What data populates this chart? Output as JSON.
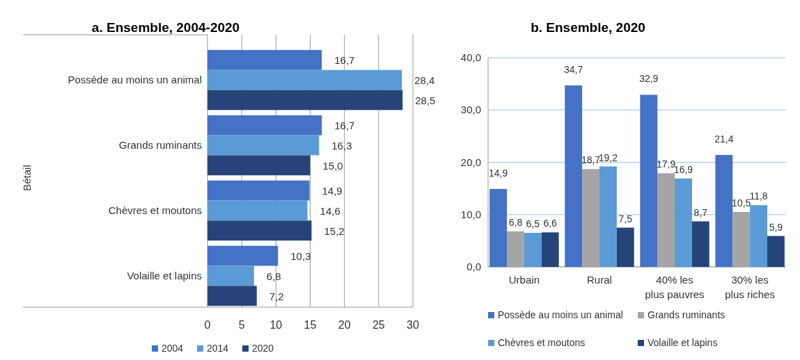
{
  "chart_data": [
    {
      "type": "bar",
      "title": "a. Ensemble, 2004-2020",
      "orientation": "horizontal",
      "ylabel": "Bétail",
      "categories": [
        "Possède au moins un animal",
        "Grands ruminants",
        "Chèvres et moutons",
        "Volaille et lapins"
      ],
      "series": [
        {
          "name": "2004",
          "color": "#4472c4",
          "values": [
            16.7,
            16.7,
            14.9,
            10.3
          ],
          "value_labels": [
            "16,7",
            "16,7",
            "14,9",
            "10,3"
          ]
        },
        {
          "name": "2014",
          "color": "#5b9bd5",
          "values": [
            28.4,
            16.3,
            14.6,
            6.8
          ],
          "value_labels": [
            "28,4",
            "16,3",
            "14,6",
            "6,8"
          ]
        },
        {
          "name": "2020",
          "color": "#264478",
          "values": [
            28.5,
            15.0,
            15.2,
            7.2
          ],
          "value_labels": [
            "28,5",
            "15,0",
            "15,2",
            "7,2"
          ]
        }
      ],
      "xlim": [
        0,
        30
      ],
      "xticks": [
        0,
        5,
        10,
        15,
        20,
        25,
        30
      ],
      "grid": "x",
      "legend": "bottom"
    },
    {
      "type": "bar",
      "title": "b. Ensemble, 2020",
      "categories": [
        "Urbain",
        "Rural",
        "40% les plus pauvres",
        "30% les plus riches"
      ],
      "series": [
        {
          "name": "Possède au moins un animal",
          "color": "#4472c4",
          "values": [
            14.9,
            34.7,
            32.9,
            21.4
          ],
          "value_labels": [
            "14,9",
            "34,7",
            "32,9",
            "21,4"
          ]
        },
        {
          "name": "Grands ruminants",
          "color": "#a5a5a5",
          "values": [
            6.8,
            18.7,
            17.9,
            10.5
          ],
          "value_labels": [
            "6,8",
            "18,7",
            "17,9",
            "10,5"
          ]
        },
        {
          "name": "Chèvres et moutons",
          "color": "#5b9bd5",
          "values": [
            6.5,
            19.2,
            16.9,
            11.8
          ],
          "value_labels": [
            "6,5",
            "19,2",
            "16,9",
            "11,8"
          ]
        },
        {
          "name": "Volaille et lapins",
          "color": "#264478",
          "values": [
            6.6,
            7.5,
            8.7,
            5.9
          ],
          "value_labels": [
            "6,6",
            "7,5",
            "8,7",
            "5,9"
          ]
        }
      ],
      "ylim": [
        0,
        40
      ],
      "yticks": [
        {
          "value": 0,
          "label": "0,0"
        },
        {
          "value": 10,
          "label": "10,0"
        },
        {
          "value": 20,
          "label": "20,0"
        },
        {
          "value": 30,
          "label": "30,0"
        },
        {
          "value": 40,
          "label": "40,0"
        }
      ],
      "grid": "y",
      "legend": "bottom"
    }
  ]
}
